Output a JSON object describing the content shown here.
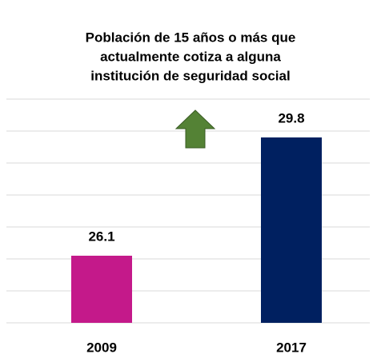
{
  "chart_data": {
    "type": "bar",
    "title_lines": [
      "Población de 15 años o más que",
      "actualmente cotiza a alguna",
      "institución de seguridad social"
    ],
    "categories": [
      "2009",
      "2017"
    ],
    "values": [
      26.1,
      29.8
    ],
    "colors": [
      "#c4198a",
      "#002060"
    ],
    "ylim": [
      24,
      31
    ],
    "yticks": [
      24,
      25,
      26,
      27,
      28,
      29,
      30,
      31
    ],
    "grid": true
  }
}
